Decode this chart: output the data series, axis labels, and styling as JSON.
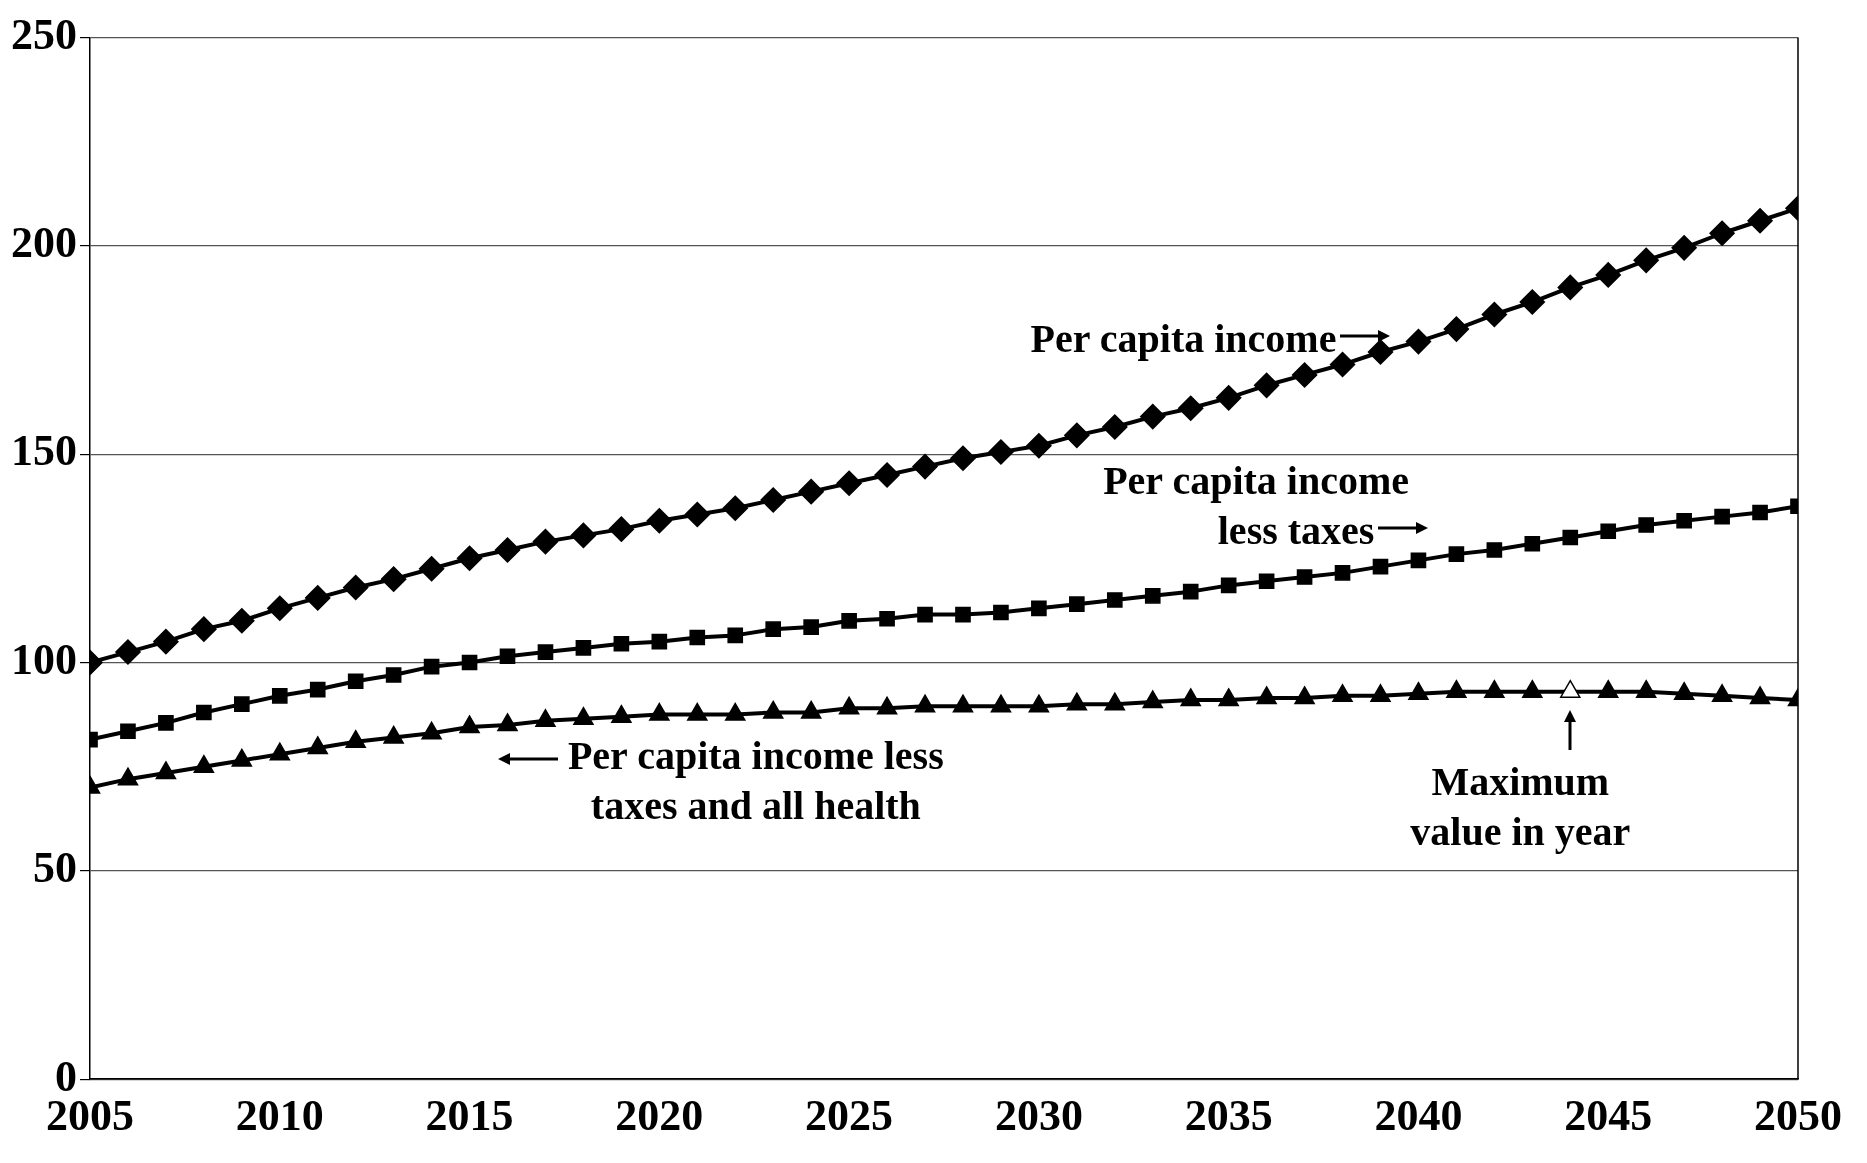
{
  "chart_data": {
    "type": "line",
    "x": [
      2005,
      2006,
      2007,
      2008,
      2009,
      2010,
      2011,
      2012,
      2013,
      2014,
      2015,
      2016,
      2017,
      2018,
      2019,
      2020,
      2021,
      2022,
      2023,
      2024,
      2025,
      2026,
      2027,
      2028,
      2029,
      2030,
      2031,
      2032,
      2033,
      2034,
      2035,
      2036,
      2037,
      2038,
      2039,
      2040,
      2041,
      2042,
      2043,
      2044,
      2045,
      2046,
      2047,
      2048,
      2049,
      2050
    ],
    "series": [
      {
        "color": "#000000",
        "marker": "diamond",
        "values": [
          100,
          102.5,
          105,
          108,
          110,
          113,
          115.5,
          118,
          120,
          122.5,
          125,
          127,
          129,
          130.5,
          132,
          134,
          135.5,
          137,
          139,
          141,
          143,
          145,
          147,
          149,
          150.5,
          152,
          154.5,
          156.5,
          159,
          161,
          163.5,
          166.5,
          169,
          171.5,
          174.5,
          177,
          180,
          183.5,
          186.5,
          190,
          193,
          196.5,
          199.5,
          203,
          206,
          209
        ]
      },
      {
        "color": "#000000",
        "marker": "square",
        "values": [
          81.5,
          83.5,
          85.5,
          88,
          90,
          92,
          93.5,
          95.5,
          97,
          99,
          100,
          101.5,
          102.5,
          103.5,
          104.5,
          105,
          106,
          106.5,
          108,
          108.5,
          110,
          110.5,
          111.5,
          111.5,
          112,
          113,
          114,
          115,
          116,
          117,
          118.5,
          119.5,
          120.5,
          121.5,
          123,
          124.5,
          126,
          127,
          128.5,
          130,
          131.5,
          133,
          134,
          135,
          136,
          137.5
        ]
      },
      {
        "color": "#000000",
        "marker": "triangle",
        "values": [
          70,
          72,
          73.5,
          75,
          76.5,
          78,
          79.5,
          81,
          82,
          83,
          84.5,
          85,
          86,
          86.5,
          87,
          87.5,
          87.5,
          87.5,
          88,
          88,
          89,
          89,
          89.5,
          89.5,
          89.5,
          89.5,
          90,
          90,
          90.5,
          91,
          91,
          91.5,
          91.5,
          92,
          92,
          92.5,
          93,
          93,
          93,
          93,
          93,
          93,
          92.5,
          92,
          91.5,
          91
        ]
      }
    ],
    "xlim": [
      2005,
      2050
    ],
    "xticks": [
      2005,
      2010,
      2015,
      2020,
      2025,
      2030,
      2035,
      2040,
      2045,
      2050
    ],
    "ylim": [
      0,
      250
    ],
    "yticks": [
      0,
      50,
      100,
      150,
      200,
      250
    ],
    "grid": "y",
    "legend": false,
    "annotations": [
      {
        "text": "Per capita income",
        "x": 2040,
        "y": 177
      },
      {
        "text": "Per capita income\nless taxes",
        "x": 2041,
        "y": 126
      },
      {
        "text": "Per capita income less\ntaxes and all health",
        "x": 2015,
        "y": 84.5
      },
      {
        "text": "Maximum\nvalue in year",
        "x": 2044,
        "y": 93
      }
    ]
  }
}
